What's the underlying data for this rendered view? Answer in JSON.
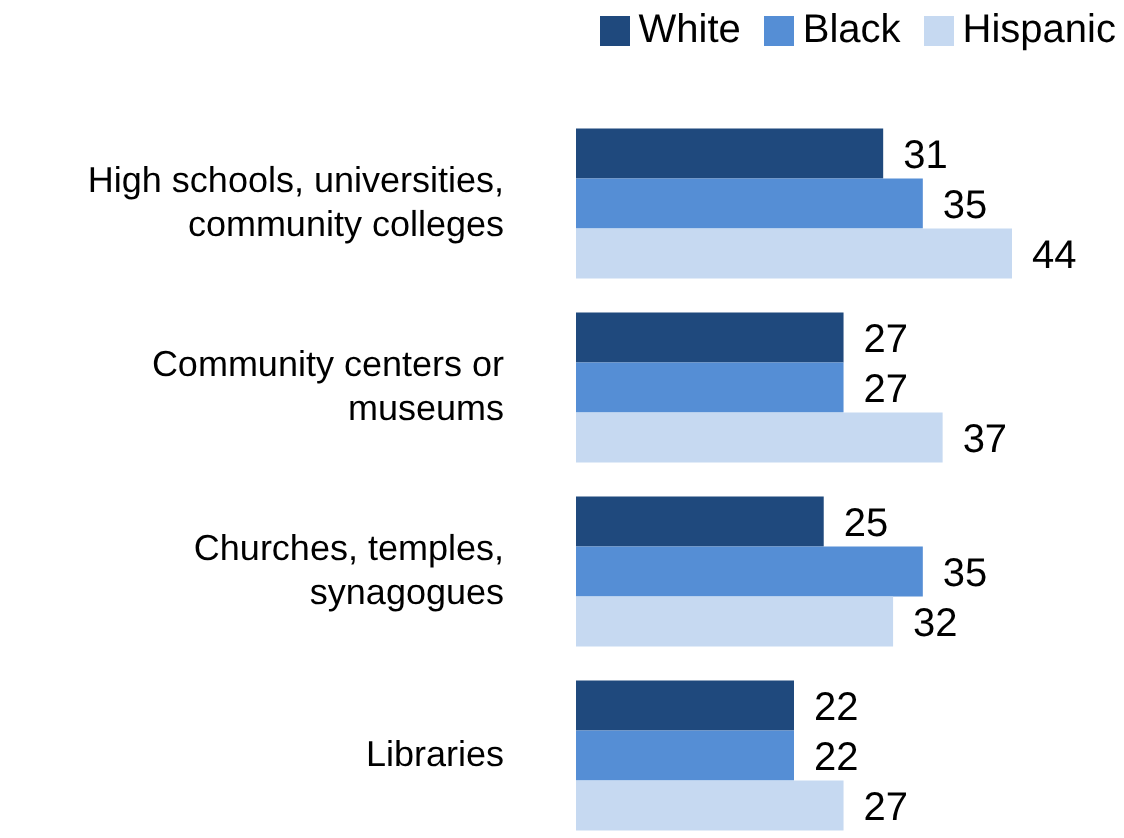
{
  "chart_data": {
    "type": "bar",
    "orientation": "horizontal",
    "data_labels": true,
    "legend": "top right",
    "categories": [
      "High schools, universities, community colleges",
      "Community centers or museums",
      "Churches, temples, synagogues",
      "Libraries"
    ],
    "series": [
      {
        "name": "White",
        "color": "#1f497d",
        "values": [
          31,
          27,
          25,
          22
        ]
      },
      {
        "name": "Black",
        "color": "#558ed5",
        "values": [
          35,
          27,
          35,
          22
        ]
      },
      {
        "name": "Hispanic",
        "color": "#c6d9f1",
        "values": [
          44,
          37,
          32,
          27
        ]
      }
    ]
  }
}
